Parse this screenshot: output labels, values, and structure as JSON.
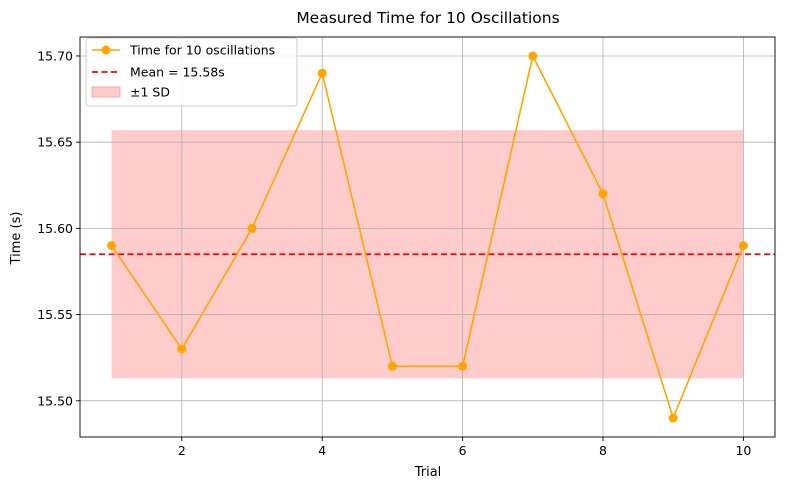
{
  "chart_data": {
    "type": "line",
    "title": "Measured Time for 10 Oscillations",
    "xlabel": "Trial",
    "ylabel": "Time (s)",
    "x": [
      1,
      2,
      3,
      4,
      5,
      6,
      7,
      8,
      9,
      10
    ],
    "series": [
      {
        "name": "Time for 10 oscillations",
        "values": [
          15.59,
          15.53,
          15.6,
          15.69,
          15.52,
          15.52,
          15.7,
          15.62,
          15.49,
          15.59
        ],
        "color": "#FFA500",
        "marker": "circle"
      }
    ],
    "mean_line": {
      "label": "Mean = 15.58s",
      "value": 15.585,
      "color": "#FF0000",
      "style": "dashed"
    },
    "sd_band": {
      "label": "±1 SD",
      "lower": 15.513,
      "upper": 15.657,
      "x_range": [
        1,
        10
      ],
      "color": "#FF9999"
    },
    "xticks": [
      2,
      4,
      6,
      8,
      10
    ],
    "xtick_labels": [
      "2",
      "4",
      "6",
      "8",
      "10"
    ],
    "yticks": [
      15.5,
      15.55,
      15.6,
      15.65,
      15.7
    ],
    "ytick_labels": [
      "15.50",
      "15.55",
      "15.60",
      "15.65",
      "15.70"
    ],
    "xlim": [
      0.55,
      10.45
    ],
    "ylim": [
      15.479,
      15.711
    ],
    "grid": true,
    "legend_position": "top-left"
  }
}
